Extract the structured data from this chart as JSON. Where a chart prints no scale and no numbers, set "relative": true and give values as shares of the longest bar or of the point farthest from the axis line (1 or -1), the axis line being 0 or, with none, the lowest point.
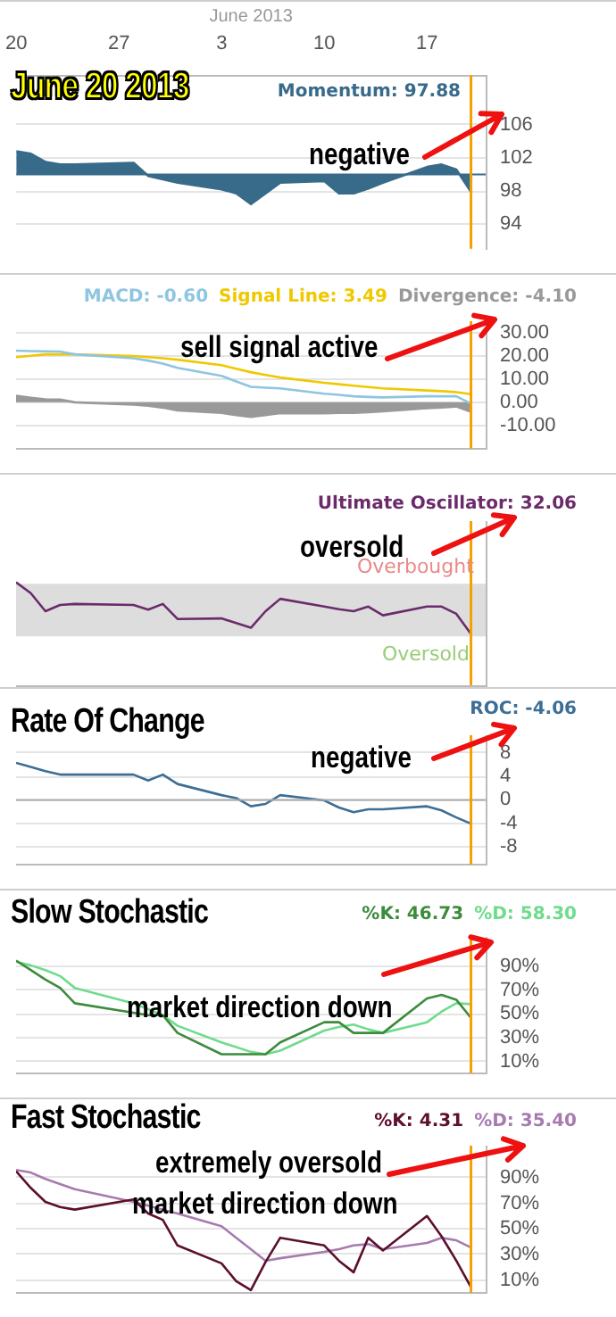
{
  "chart_data": [
    {
      "type": "area",
      "title": "June 20 2013",
      "xlabel": "June 2013",
      "x": [
        "2013-05-20",
        "2013-05-21",
        "2013-05-22",
        "2013-05-23",
        "2013-05-24",
        "2013-05-28",
        "2013-05-29",
        "2013-05-30",
        "2013-05-31",
        "2013-06-03",
        "2013-06-04",
        "2013-06-05",
        "2013-06-06",
        "2013-06-07",
        "2013-06-10",
        "2013-06-11",
        "2013-06-12",
        "2013-06-13",
        "2013-06-14",
        "2013-06-17",
        "2013-06-18",
        "2013-06-19",
        "2013-06-20"
      ],
      "series": [
        {
          "name": "Momentum: 97.88",
          "color": "#386a8a",
          "values": [
            102.8,
            102.5,
            101.5,
            101.2,
            101.2,
            101.4,
            99.8,
            99.4,
            99.0,
            98.2,
            97.7,
            96.4,
            97.7,
            99.0,
            99.2,
            97.7,
            97.7,
            98.3,
            99.0,
            100.9,
            101.2,
            100.6,
            97.88
          ]
        }
      ],
      "xlim": [
        "2013-05-20",
        "2013-06-21"
      ],
      "xticks": [
        {
          "value": "2013-05-20",
          "label": "20"
        },
        {
          "value": "2013-05-27",
          "label": "27"
        },
        {
          "value": "2013-06-03",
          "label": "3"
        },
        {
          "value": "2013-06-10",
          "label": "10"
        },
        {
          "value": "2013-06-17",
          "label": "17"
        }
      ],
      "ylim": [
        91,
        112
      ],
      "yticks": [
        94,
        98,
        102,
        106
      ],
      "grid": "y",
      "legend": "top right",
      "ref_lines": [
        {
          "axis": "y",
          "value": 100,
          "color": "#386a8a"
        },
        {
          "axis": "x",
          "value": "2013-06-20",
          "color": "#f5a000"
        }
      ],
      "annotations": [
        "negative"
      ]
    },
    {
      "type": "line",
      "x": [
        "2013-05-20",
        "2013-05-21",
        "2013-05-22",
        "2013-05-23",
        "2013-05-24",
        "2013-05-28",
        "2013-05-29",
        "2013-05-30",
        "2013-05-31",
        "2013-06-03",
        "2013-06-04",
        "2013-06-05",
        "2013-06-06",
        "2013-06-07",
        "2013-06-10",
        "2013-06-11",
        "2013-06-12",
        "2013-06-13",
        "2013-06-14",
        "2013-06-17",
        "2013-06-18",
        "2013-06-19",
        "2013-06-20"
      ],
      "series": [
        {
          "name": "MACD: -0.60",
          "color": "#8ec5e0",
          "values": [
            22.3,
            22.1,
            22.0,
            21.9,
            20.7,
            19.0,
            18.0,
            16.7,
            14.9,
            11.4,
            9.0,
            6.7,
            6.3,
            6.0,
            3.7,
            3.2,
            2.6,
            2.3,
            2.1,
            2.6,
            2.6,
            2.6,
            -0.6
          ]
        },
        {
          "name": "Signal Line: 3.49",
          "color": "#f0c800",
          "values": [
            19.5,
            20.1,
            20.7,
            20.7,
            20.7,
            20.0,
            19.5,
            19.0,
            18.4,
            16.0,
            14.5,
            13.0,
            11.8,
            10.7,
            8.4,
            7.8,
            7.2,
            6.6,
            6.0,
            5.1,
            4.8,
            4.4,
            3.49
          ]
        },
        {
          "name": "Divergence: -4.10",
          "type": "area",
          "color": "#999999",
          "values": [
            2.8,
            2.0,
            1.3,
            1.2,
            0.0,
            -1.0,
            -1.5,
            -2.3,
            -3.5,
            -4.6,
            -5.5,
            -6.3,
            -5.5,
            -4.7,
            -4.7,
            -4.6,
            -4.6,
            -4.3,
            -3.9,
            -2.5,
            -2.2,
            -1.8,
            -4.1
          ]
        }
      ],
      "xlim": [
        "2013-05-20",
        "2013-06-21"
      ],
      "ylim": [
        -20,
        35
      ],
      "yticks": [
        {
          "value": 30,
          "label": "30.00"
        },
        {
          "value": 20,
          "label": "20.00"
        },
        {
          "value": 10,
          "label": "10.00"
        },
        {
          "value": 0,
          "label": "0.00"
        },
        {
          "value": -10,
          "label": "-10.00"
        }
      ],
      "grid": "y",
      "legend": "top right",
      "tick_labels": "y",
      "ref_lines": [
        {
          "axis": "x",
          "value": "2013-06-20",
          "color": "#f5a000"
        }
      ],
      "annotations": [
        "sell signal active"
      ]
    },
    {
      "type": "line",
      "relative": true,
      "x": [
        "2013-05-20",
        "2013-05-21",
        "2013-05-22",
        "2013-05-23",
        "2013-05-24",
        "2013-05-28",
        "2013-05-29",
        "2013-05-30",
        "2013-05-31",
        "2013-06-03",
        "2013-06-04",
        "2013-06-05",
        "2013-06-06",
        "2013-06-07",
        "2013-06-10",
        "2013-06-11",
        "2013-06-12",
        "2013-06-13",
        "2013-06-14",
        "2013-06-17",
        "2013-06-18",
        "2013-06-19",
        "2013-06-20"
      ],
      "series": [
        {
          "name": "Ultimate Oscillator: 32.06",
          "color": "#6b2b6b",
          "values": [
            1.0,
            0.79,
            0.44,
            0.56,
            0.58,
            0.56,
            0.47,
            0.58,
            0.29,
            0.3,
            0.21,
            0.12,
            0.44,
            0.68,
            0.53,
            0.48,
            0.44,
            0.53,
            0.36,
            0.53,
            0.53,
            0.39,
            0.0
          ]
        }
      ],
      "xlim": [
        "2013-05-20",
        "2013-06-21"
      ],
      "legend": "top right",
      "tick_labels": false,
      "bands": [
        {
          "axis": "y",
          "from": -0.05,
          "to": 0.97,
          "color": "#dddddd"
        }
      ],
      "ref_lines": [
        {
          "axis": "x",
          "value": "2013-06-20",
          "color": "#f5a000"
        }
      ],
      "annotations": [
        "oversold",
        "Overbought",
        "Oversold"
      ]
    },
    {
      "type": "line",
      "title": "Rate Of Change",
      "x": [
        "2013-05-20",
        "2013-05-21",
        "2013-05-22",
        "2013-05-23",
        "2013-05-24",
        "2013-05-28",
        "2013-05-29",
        "2013-05-30",
        "2013-05-31",
        "2013-06-03",
        "2013-06-04",
        "2013-06-05",
        "2013-06-06",
        "2013-06-07",
        "2013-06-10",
        "2013-06-11",
        "2013-06-12",
        "2013-06-13",
        "2013-06-14",
        "2013-06-17",
        "2013-06-18",
        "2013-06-19",
        "2013-06-20"
      ],
      "series": [
        {
          "name": "ROC: -4.06",
          "color": "#3c6e96",
          "values": [
            6.3,
            5.6,
            4.9,
            4.3,
            4.3,
            4.3,
            3.3,
            4.3,
            2.7,
            0.8,
            0.3,
            -1.1,
            -0.7,
            0.8,
            -0.1,
            -1.3,
            -2.1,
            -1.6,
            -1.6,
            -1.1,
            -1.8,
            -3.0,
            -4.06
          ]
        }
      ],
      "xlim": [
        "2013-05-20",
        "2013-06-21"
      ],
      "ylim": [
        -11,
        11
      ],
      "yticks": [
        8,
        4,
        0,
        -4,
        -8
      ],
      "grid": "y",
      "legend": "top right",
      "tick_labels": "y",
      "ref_lines": [
        {
          "axis": "y",
          "value": 0,
          "color": "#aaaaaa"
        },
        {
          "axis": "x",
          "value": "2013-06-20",
          "color": "#f5a000"
        }
      ],
      "annotations": [
        "negative"
      ]
    },
    {
      "type": "line",
      "title": "Slow Stochastic",
      "x": [
        "2013-05-20",
        "2013-05-21",
        "2013-05-22",
        "2013-05-23",
        "2013-05-24",
        "2013-05-28",
        "2013-05-29",
        "2013-05-30",
        "2013-05-31",
        "2013-06-03",
        "2013-06-04",
        "2013-06-05",
        "2013-06-06",
        "2013-06-07",
        "2013-06-10",
        "2013-06-11",
        "2013-06-12",
        "2013-06-13",
        "2013-06-14",
        "2013-06-17",
        "2013-06-18",
        "2013-06-19",
        "2013-06-20"
      ],
      "series": [
        {
          "name": "%K: 46.73",
          "color": "#3d8b3d",
          "values": [
            95,
            87,
            79,
            72,
            59,
            51,
            49,
            49,
            34,
            16,
            16,
            16,
            16,
            26,
            43,
            43,
            34,
            34,
            34,
            63,
            66,
            62,
            46.73
          ]
        },
        {
          "name": "%D: 58.30",
          "color": "#6fdc8c",
          "values": [
            94,
            91,
            87,
            82,
            72,
            59,
            54,
            49,
            40,
            26,
            22,
            18,
            16,
            19,
            36,
            39,
            41,
            37,
            34,
            43,
            52,
            59,
            58.3
          ]
        }
      ],
      "xlim": [
        "2013-05-20",
        "2013-06-21"
      ],
      "ylim": [
        0,
        115
      ],
      "yticks": [
        {
          "value": 90,
          "label": "90%"
        },
        {
          "value": 70,
          "label": "70%"
        },
        {
          "value": 50,
          "label": "50%"
        },
        {
          "value": 30,
          "label": "30%"
        },
        {
          "value": 10,
          "label": "10%"
        }
      ],
      "grid": "y",
      "legend": "top right",
      "tick_labels": "y",
      "ref_lines": [
        {
          "axis": "x",
          "value": "2013-06-20",
          "color": "#f5a000"
        }
      ],
      "annotations": [
        "market direction down"
      ]
    },
    {
      "type": "line",
      "title": "Fast Stochastic",
      "x": [
        "2013-05-20",
        "2013-05-21",
        "2013-05-22",
        "2013-05-23",
        "2013-05-24",
        "2013-05-28",
        "2013-05-29",
        "2013-05-30",
        "2013-05-31",
        "2013-06-03",
        "2013-06-04",
        "2013-06-05",
        "2013-06-06",
        "2013-06-07",
        "2013-06-10",
        "2013-06-11",
        "2013-06-12",
        "2013-06-13",
        "2013-06-14",
        "2013-06-17",
        "2013-06-18",
        "2013-06-19",
        "2013-06-20"
      ],
      "series": [
        {
          "name": "%K: 4.31",
          "color": "#5c0f2e",
          "values": [
            95,
            82,
            71,
            67,
            65,
            73,
            62,
            57,
            37,
            23,
            9,
            2,
            24,
            43,
            37,
            25,
            16,
            43,
            33,
            60,
            44,
            25,
            4.31
          ]
        },
        {
          "name": "%D: 35.40",
          "color": "#a77bb0",
          "values": [
            96,
            94,
            89,
            85,
            81,
            71,
            68,
            65,
            62,
            52,
            43,
            34,
            25,
            27,
            32,
            34,
            37,
            38,
            34,
            39,
            43,
            41,
            35.4
          ]
        }
      ],
      "xlim": [
        "2013-05-20",
        "2013-06-21"
      ],
      "ylim": [
        0,
        115
      ],
      "yticks": [
        {
          "value": 90,
          "label": "90%"
        },
        {
          "value": 70,
          "label": "70%"
        },
        {
          "value": 50,
          "label": "50%"
        },
        {
          "value": 30,
          "label": "30%"
        },
        {
          "value": 10,
          "label": "10%"
        }
      ],
      "grid": "y",
      "legend": "top right",
      "tick_labels": "y",
      "ref_lines": [
        {
          "axis": "x",
          "value": "2013-06-20",
          "color": "#f5a000"
        }
      ],
      "annotations": [
        "extremely oversold",
        "market direction down"
      ]
    }
  ]
}
